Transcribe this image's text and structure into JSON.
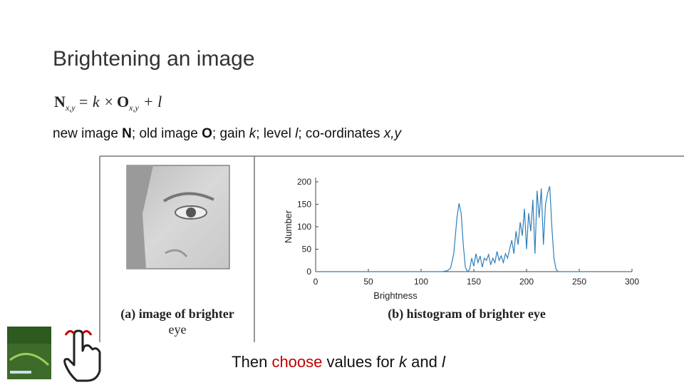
{
  "title": "Brightening an image",
  "formula": {
    "lhs": "N",
    "lhs_sub": "x,y",
    "operator": "= k ×",
    "rhs": "O",
    "rhs_sub": "x,y",
    "tail": "+ l"
  },
  "description": [
    "new image ",
    "N",
    "; old image ",
    "O",
    "; gain ",
    "k",
    "; level ",
    "l",
    "; co-ordinates ",
    "x,y"
  ],
  "image_caption": [
    "(a) image of brighter",
    "eye"
  ],
  "chart_data": {
    "type": "line",
    "caption": "(b) histogram of brighter eye",
    "x_label": "Brightness",
    "y_label": "Number",
    "color": "#2f7fb8",
    "x": [
      0,
      120,
      125,
      128,
      131,
      134,
      136,
      138,
      140,
      142,
      144,
      146,
      148,
      150,
      152,
      154,
      156,
      158,
      160,
      162,
      164,
      166,
      168,
      170,
      172,
      174,
      176,
      178,
      180,
      182,
      184,
      186,
      188,
      190,
      192,
      194,
      196,
      198,
      200,
      202,
      204,
      206,
      208,
      210,
      212,
      214,
      216,
      218,
      220,
      222,
      224,
      226,
      228,
      230,
      240,
      255
    ],
    "values": [
      0,
      0,
      2,
      8,
      40,
      120,
      152,
      130,
      60,
      10,
      0,
      5,
      30,
      12,
      40,
      20,
      35,
      10,
      30,
      25,
      38,
      15,
      30,
      20,
      45,
      25,
      35,
      20,
      40,
      30,
      50,
      70,
      40,
      90,
      60,
      110,
      80,
      140,
      50,
      130,
      90,
      160,
      40,
      180,
      120,
      185,
      60,
      150,
      175,
      190,
      100,
      30,
      5,
      0,
      0,
      0
    ],
    "xlim": [
      0,
      300
    ],
    "xticks": [
      0,
      50,
      100,
      150,
      200,
      250,
      300
    ],
    "ylim": [
      0,
      200
    ],
    "yticks": [
      0,
      50,
      100,
      150,
      200
    ]
  },
  "footer": [
    "Then ",
    "choose",
    " values for ",
    "k",
    " and ",
    "l"
  ]
}
